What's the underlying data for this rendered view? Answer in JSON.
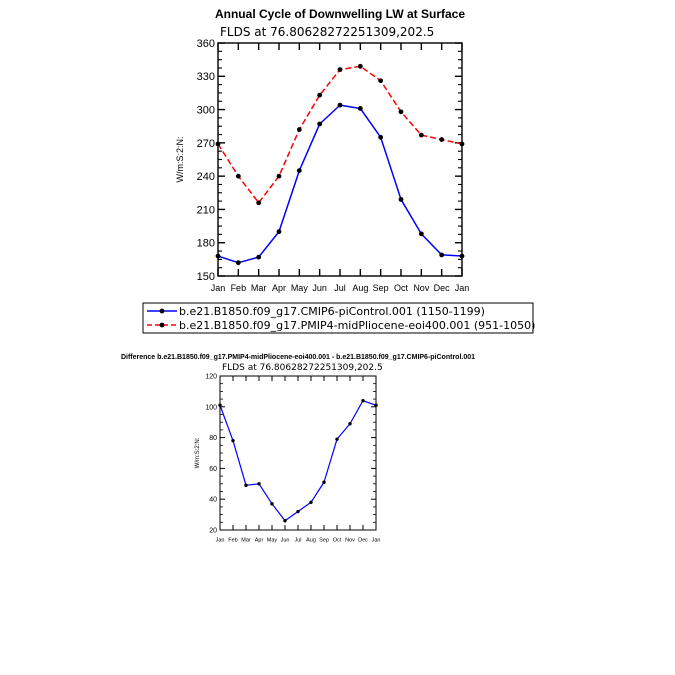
{
  "chart_data": [
    {
      "type": "line",
      "title": "Annual Cycle of Downwelling LW at Surface",
      "subtitle": "FLDS at 76.80628272251309,202.5",
      "ylabel": "W/m:S:2:N:",
      "xlabel": "",
      "ylim": [
        150,
        360
      ],
      "yticks": [
        "150",
        "180",
        "210",
        "240",
        "270",
        "300",
        "330",
        "360"
      ],
      "categories": [
        "Jan",
        "Feb",
        "Mar",
        "Apr",
        "May",
        "Jun",
        "Jul",
        "Aug",
        "Sep",
        "Oct",
        "Nov",
        "Dec",
        "Jan"
      ],
      "legend_position": "below",
      "series": [
        {
          "name": "b.e21.B1850.f09_g17.CMIP6-piControl.001 (1150-1199)",
          "color": "#0000ff",
          "style": "solid",
          "values": [
            168,
            162,
            167,
            190,
            245,
            287,
            304,
            301,
            275,
            219,
            188,
            169,
            168
          ]
        },
        {
          "name": "b.e21.B1850.f09_g17.PMIP4-midPliocene-eoi400.001 (951-1050)",
          "color": "#ff0000",
          "style": "dashed",
          "values": [
            269,
            240,
            216,
            240,
            282,
            313,
            336,
            339,
            326,
            298,
            277,
            273,
            269
          ]
        }
      ]
    },
    {
      "type": "line",
      "title": "Difference b.e21.B1850.f09_g17.PMIP4-midPliocene-eoi400.001 - b.e21.B1850.f09_g17.CMIP6-piControl.001",
      "subtitle": "FLDS at 76.80628272251309,202.5",
      "ylabel": "W/m:S:2:N:",
      "xlabel": "",
      "ylim": [
        20,
        120
      ],
      "yticks": [
        "20",
        "40",
        "60",
        "80",
        "100",
        "120"
      ],
      "categories": [
        "Jan",
        "Feb",
        "Mar",
        "Apr",
        "May",
        "Jun",
        "Jul",
        "Aug",
        "Sep",
        "Oct",
        "Nov",
        "Dec",
        "Jan"
      ],
      "series": [
        {
          "color": "#0000ff",
          "style": "solid",
          "values": [
            101,
            78,
            49,
            50,
            37,
            26,
            32,
            38,
            51,
            79,
            89,
            104,
            101
          ]
        }
      ]
    }
  ]
}
